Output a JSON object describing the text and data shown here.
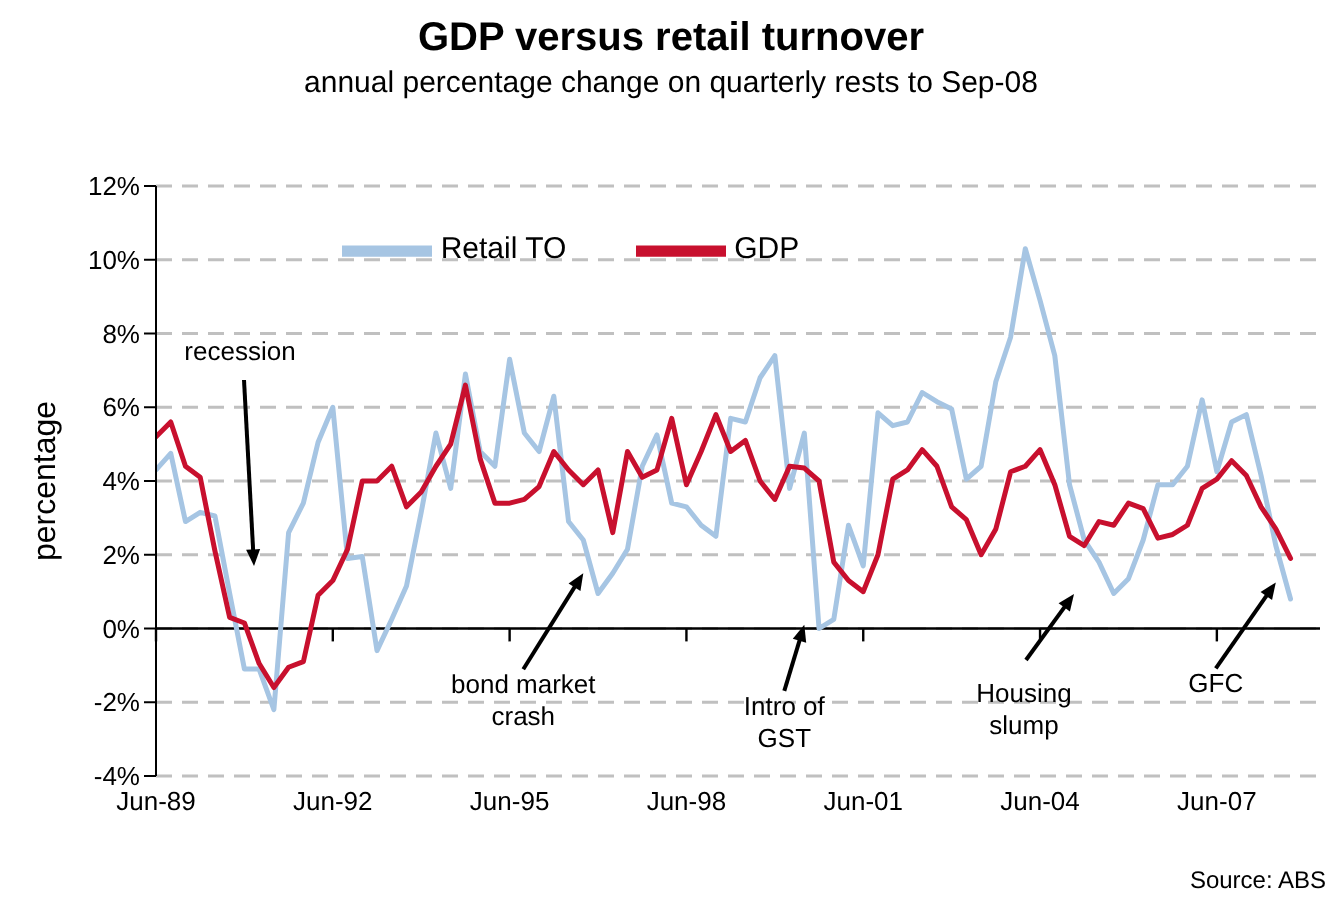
{
  "chart_data": {
    "type": "line",
    "title": "GDP versus retail turnover",
    "subtitle": "annual percentage change on quarterly rests to Sep-08",
    "ylabel": "percentage",
    "x": [
      "1989-06",
      "1989-09",
      "1989-12",
      "1990-03",
      "1990-06",
      "1990-09",
      "1990-12",
      "1991-03",
      "1991-06",
      "1991-09",
      "1991-12",
      "1992-03",
      "1992-06",
      "1992-09",
      "1992-12",
      "1993-03",
      "1993-06",
      "1993-09",
      "1993-12",
      "1994-03",
      "1994-06",
      "1994-09",
      "1994-12",
      "1995-03",
      "1995-06",
      "1995-09",
      "1995-12",
      "1996-03",
      "1996-06",
      "1996-09",
      "1996-12",
      "1997-03",
      "1997-06",
      "1997-09",
      "1997-12",
      "1998-03",
      "1998-06",
      "1998-09",
      "1998-12",
      "1999-03",
      "1999-06",
      "1999-09",
      "1999-12",
      "2000-03",
      "2000-06",
      "2000-09",
      "2000-12",
      "2001-03",
      "2001-06",
      "2001-09",
      "2001-12",
      "2002-03",
      "2002-06",
      "2002-09",
      "2002-12",
      "2003-03",
      "2003-06",
      "2003-09",
      "2003-12",
      "2004-03",
      "2004-06",
      "2004-09",
      "2004-12",
      "2005-03",
      "2005-06",
      "2005-09",
      "2005-12",
      "2006-03",
      "2006-06",
      "2006-09",
      "2006-12",
      "2007-03",
      "2007-06",
      "2007-09",
      "2007-12",
      "2008-03",
      "2008-06",
      "2008-09"
    ],
    "series": [
      {
        "name": "Retail TO",
        "color": "#a6c5e3",
        "values": [
          4.3,
          4.75,
          2.9,
          3.15,
          3.05,
          0.95,
          -1.1,
          -1.1,
          -2.2,
          2.6,
          3.4,
          5.05,
          6.0,
          1.9,
          1.95,
          -0.6,
          0.25,
          1.15,
          3.15,
          5.3,
          3.8,
          6.9,
          4.8,
          4.4,
          7.3,
          5.3,
          4.8,
          6.3,
          2.9,
          2.4,
          0.95,
          1.5,
          2.15,
          4.4,
          5.25,
          3.4,
          3.3,
          2.8,
          2.5,
          5.7,
          5.6,
          6.8,
          7.4,
          3.8,
          5.3,
          0.0,
          0.25,
          2.8,
          1.7,
          5.85,
          5.5,
          5.6,
          6.4,
          6.15,
          5.95,
          4.05,
          4.4,
          6.7,
          7.9,
          10.3,
          8.9,
          7.4,
          3.9,
          2.4,
          1.8,
          0.95,
          1.35,
          2.4,
          3.9,
          3.9,
          4.4,
          6.2,
          4.25,
          5.6,
          5.8,
          4.15,
          2.25,
          0.8
        ]
      },
      {
        "name": "GDP",
        "color": "#c8102e",
        "values": [
          5.2,
          5.6,
          4.4,
          4.1,
          2.1,
          0.3,
          0.15,
          -0.95,
          -1.6,
          -1.05,
          -0.9,
          0.9,
          1.3,
          2.15,
          4.0,
          4.0,
          4.4,
          3.3,
          3.7,
          4.4,
          5.0,
          6.6,
          4.6,
          3.4,
          3.4,
          3.5,
          3.85,
          4.8,
          4.3,
          3.9,
          4.3,
          2.6,
          4.8,
          4.1,
          4.3,
          5.7,
          3.9,
          4.8,
          5.8,
          4.8,
          5.1,
          4.0,
          3.5,
          4.4,
          4.35,
          4.0,
          1.8,
          1.3,
          1.0,
          2.0,
          4.05,
          4.3,
          4.85,
          4.4,
          3.3,
          2.95,
          2.0,
          2.7,
          4.25,
          4.4,
          4.85,
          3.9,
          2.5,
          2.25,
          2.9,
          2.8,
          3.4,
          3.25,
          2.45,
          2.55,
          2.8,
          3.8,
          4.05,
          4.55,
          4.15,
          3.3,
          2.7,
          1.9
        ]
      }
    ],
    "xlim": [
      "1989-06",
      "2009-03"
    ],
    "xticks": [
      {
        "value": "1989-06",
        "label": "Jun-89"
      },
      {
        "value": "1992-06",
        "label": "Jun-92"
      },
      {
        "value": "1995-06",
        "label": "Jun-95"
      },
      {
        "value": "1998-06",
        "label": "Jun-98"
      },
      {
        "value": "2001-06",
        "label": "Jun-01"
      },
      {
        "value": "2004-06",
        "label": "Jun-04"
      },
      {
        "value": "2007-06",
        "label": "Jun-07"
      }
    ],
    "ylim": [
      -4,
      12
    ],
    "yticks": [
      {
        "value": -4,
        "label": "-4%"
      },
      {
        "value": -2,
        "label": "-2%"
      },
      {
        "value": 0,
        "label": "0%"
      },
      {
        "value": 2,
        "label": "2%"
      },
      {
        "value": 4,
        "label": "4%"
      },
      {
        "value": 6,
        "label": "6%"
      },
      {
        "value": 8,
        "label": "8%"
      },
      {
        "value": 10,
        "label": "10%"
      },
      {
        "value": 12,
        "label": "12%"
      }
    ],
    "ref_lines": [
      {
        "axis": "y",
        "value": 0,
        "color": "#000000"
      }
    ],
    "grid": "y",
    "legend": "top",
    "marker": "none",
    "line_style": "solid",
    "annotations": [
      "recession",
      {
        "text": "bond market crash",
        "x": "1996-09",
        "y": 1.5
      },
      {
        "text": "Intro of GST",
        "x": "2000-06",
        "y": 0.1
      },
      "Housing slump",
      {
        "text": "GFC",
        "x": "2008-06",
        "y": 1.25
      },
      "Source: ABS"
    ]
  }
}
